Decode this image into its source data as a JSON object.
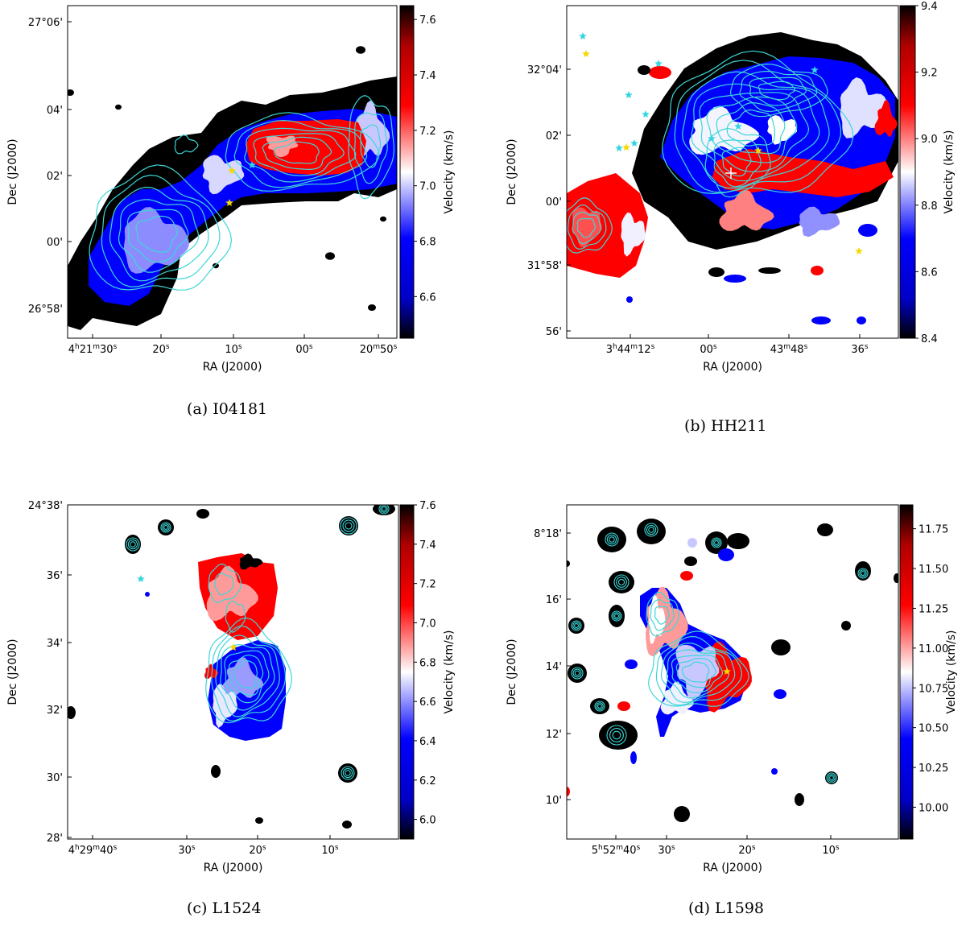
{
  "panels": [
    {
      "id": "a",
      "caption": "(a) I04181",
      "ra_label": "RA (J2000)",
      "dec_label": "Dec (J2000)",
      "colorbar_label": "Velocity (km/s)",
      "colorbar_range": [
        6.45,
        7.65
      ],
      "colorbar_ticks": [
        "6.6",
        "6.8",
        "7.0",
        "7.2",
        "7.4",
        "7.6"
      ],
      "ra_ticks": [
        {
          "base": "4",
          "h": "h",
          "rest": "21",
          "m": "m",
          "s": "30",
          "ss": "s",
          "type": "full"
        },
        {
          "s": "20",
          "ss": "s",
          "type": "sec"
        },
        {
          "s": "10",
          "ss": "s",
          "type": "sec"
        },
        {
          "s": "00",
          "ss": "s",
          "type": "sec"
        },
        {
          "m": "20",
          "mm": "m",
          "s": "50",
          "ss": "s",
          "type": "minsec"
        }
      ],
      "dec_ticks": [
        "27°06'",
        "04'",
        "02'",
        "00'",
        "26°58'"
      ]
    },
    {
      "id": "b",
      "caption": "(b) HH211",
      "ra_label": "RA (J2000)",
      "dec_label": "Dec (J2000)",
      "colorbar_label": "Velocity (km/s)",
      "colorbar_range": [
        8.4,
        9.4
      ],
      "colorbar_ticks": [
        "8.4",
        "8.6",
        "8.8",
        "9.0",
        "9.2",
        "9.4"
      ],
      "ra_ticks": [
        {
          "base": "3",
          "h": "h",
          "rest": "44",
          "m": "m",
          "s": "12",
          "ss": "s",
          "type": "full"
        },
        {
          "s": "00",
          "ss": "s",
          "type": "sec"
        },
        {
          "m": "43",
          "mm": "m",
          "s": "48",
          "ss": "s",
          "type": "minsec"
        },
        {
          "s": "36",
          "ss": "s",
          "type": "sec"
        }
      ],
      "dec_ticks": [
        "32°04'",
        "02'",
        "00'",
        "31°58'",
        "56'"
      ]
    },
    {
      "id": "c",
      "caption": "(c) L1524",
      "ra_label": "RA (J2000)",
      "dec_label": "Dec (J2000)",
      "colorbar_label": "Velocity (km/s)",
      "colorbar_range": [
        5.9,
        7.6
      ],
      "colorbar_ticks": [
        "6.0",
        "6.2",
        "6.4",
        "6.6",
        "6.8",
        "7.0",
        "7.2",
        "7.4",
        "7.6"
      ],
      "ra_ticks": [
        {
          "base": "4",
          "h": "h",
          "rest": "29",
          "m": "m",
          "s": "40",
          "ss": "s",
          "type": "full"
        },
        {
          "s": "30",
          "ss": "s",
          "type": "sec"
        },
        {
          "s": "20",
          "ss": "s",
          "type": "sec"
        },
        {
          "s": "10",
          "ss": "s",
          "type": "sec"
        }
      ],
      "dec_ticks": [
        "24°38'",
        "36'",
        "34'",
        "32'",
        "30'",
        "28'"
      ]
    },
    {
      "id": "d",
      "caption": "(d) L1598",
      "ra_label": "RA (J2000)",
      "dec_label": "Dec (J2000)",
      "colorbar_label": "Velocity (km/s)",
      "colorbar_range": [
        9.8,
        11.9
      ],
      "colorbar_ticks": [
        "10.00",
        "10.25",
        "10.50",
        "10.75",
        "11.00",
        "11.25",
        "11.50",
        "11.75"
      ],
      "ra_ticks": [
        {
          "base": "5",
          "h": "h",
          "rest": "52",
          "m": "m",
          "s": "40",
          "ss": "s",
          "type": "full"
        },
        {
          "s": "30",
          "ss": "s",
          "type": "sec"
        },
        {
          "s": "20",
          "ss": "s",
          "type": "sec"
        },
        {
          "s": "10",
          "ss": "s",
          "type": "sec"
        }
      ],
      "dec_ticks": [
        "8°18'",
        "16'",
        "14'",
        "12'",
        "10'"
      ]
    }
  ],
  "colors": {
    "low": "#0000ff",
    "mid": "#ffffff",
    "high": "#ff0000",
    "extreme": "#000000",
    "contour": "#3cd7d7",
    "star_cyan": "#33d6e0",
    "star_yellow": "#f5d800"
  }
}
